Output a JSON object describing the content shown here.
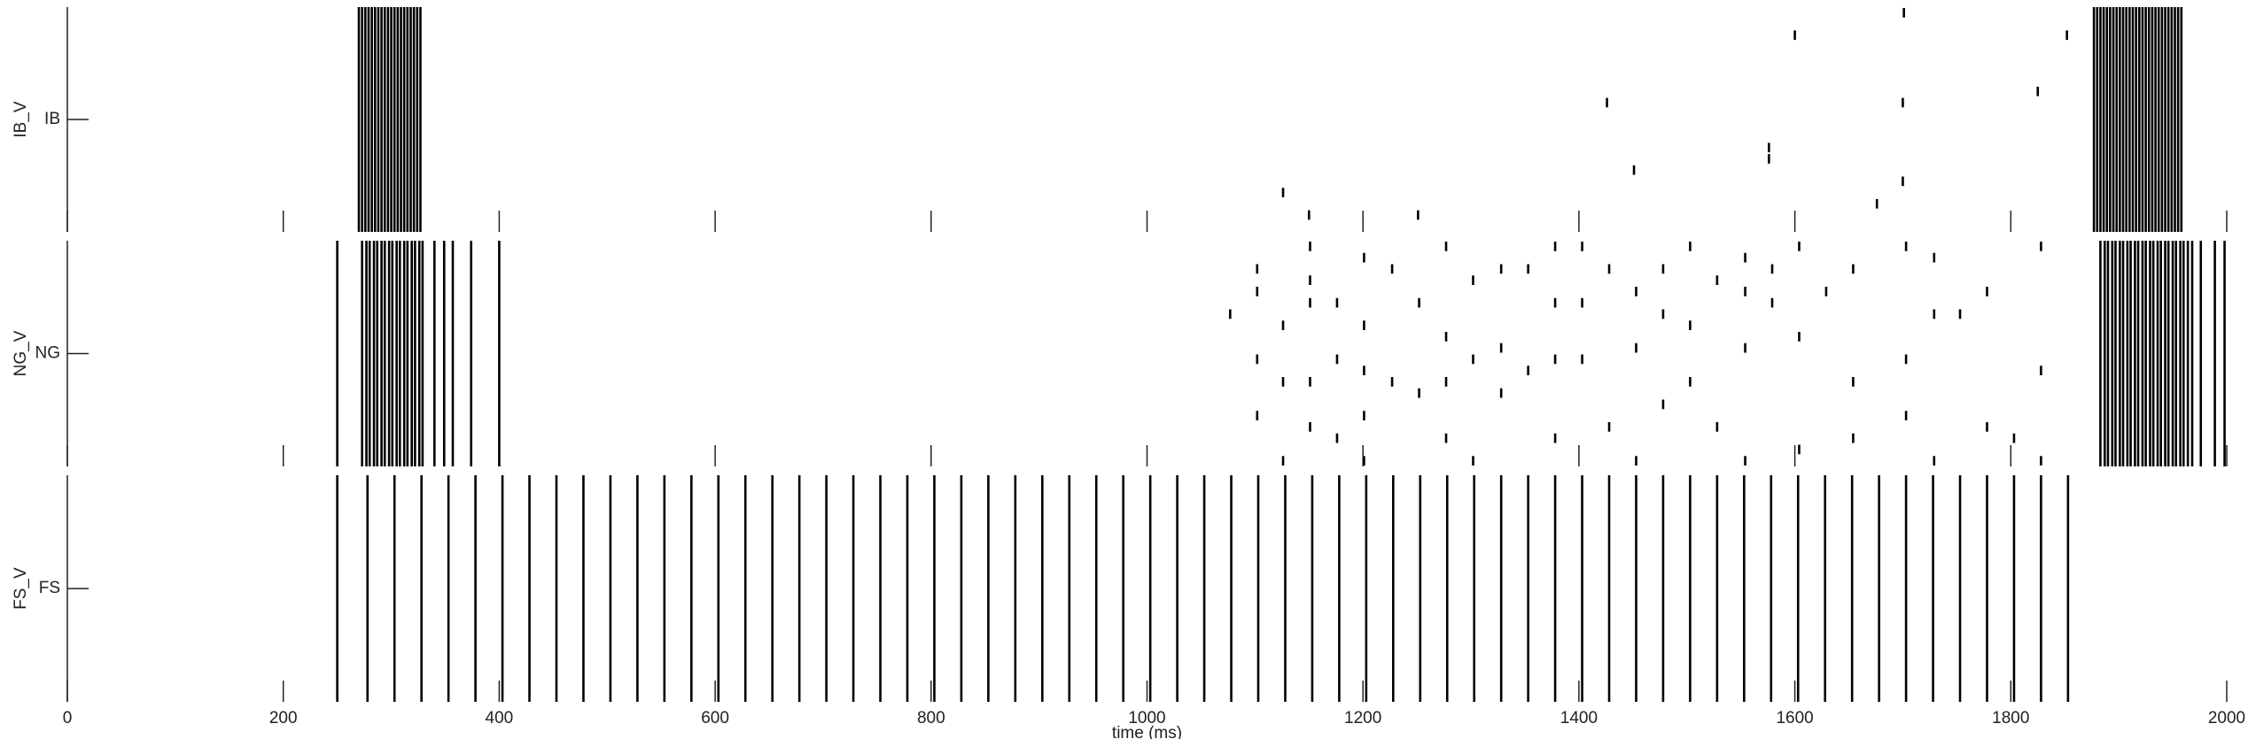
{
  "chart_data": [
    {
      "type": "raster",
      "ylabel": "IB_V",
      "ylim": [
        0,
        20
      ],
      "yticks": [
        {
          "value": 10,
          "label": "IB"
        }
      ],
      "xlim": [
        0,
        2000
      ],
      "xticks": [
        0,
        200,
        400,
        600,
        800,
        1000,
        1200,
        1400,
        1600,
        1800,
        2000
      ],
      "color": "#000000",
      "volleys": [
        270,
        273,
        276,
        279,
        282,
        285,
        288,
        291,
        294,
        297,
        300,
        303,
        306,
        309,
        312,
        315,
        318,
        321,
        324,
        327,
        1877,
        1880,
        1883,
        1886,
        1889,
        1892,
        1895,
        1898,
        1901,
        1904,
        1907,
        1910,
        1913,
        1916,
        1919,
        1922,
        1925,
        1928,
        1931,
        1934,
        1937,
        1940,
        1943,
        1946,
        1949,
        1952,
        1955,
        1958
      ],
      "spikes": {
        "x": [
          1126,
          1150,
          1251,
          1426,
          1451,
          1576,
          1576,
          1600,
          1676,
          1700,
          1700,
          1701,
          1825,
          1852
        ],
        "y": [
          3,
          1,
          1,
          11,
          5,
          7,
          6,
          17,
          2,
          4,
          11,
          19,
          12,
          17
        ]
      }
    },
    {
      "type": "raster",
      "ylabel": "NG_V",
      "ylim": [
        0,
        20
      ],
      "yticks": [
        {
          "value": 10,
          "label": "NG"
        }
      ],
      "xlim": [
        0,
        2000
      ],
      "xticks": [
        0,
        200,
        400,
        600,
        800,
        1000,
        1200,
        1400,
        1600,
        1800,
        2000
      ],
      "color": "#000000",
      "volleys": [
        250,
        273,
        277,
        280,
        284,
        287,
        291,
        294,
        298,
        301,
        305,
        308,
        312,
        315,
        319,
        322,
        326,
        329,
        340,
        349,
        357,
        374,
        400,
        1883,
        1887,
        1890,
        1894,
        1897,
        1901,
        1904,
        1908,
        1911,
        1915,
        1918,
        1922,
        1925,
        1929,
        1932,
        1936,
        1939,
        1943,
        1946,
        1950,
        1953,
        1957,
        1960,
        1964,
        1968,
        1976,
        1989,
        1998
      ],
      "spikes": {
        "x": [
          1077,
          1102,
          1102,
          1102,
          1102,
          1126,
          1126,
          1126,
          1151,
          1151,
          1151,
          1151,
          1151,
          1176,
          1176,
          1176,
          1201,
          1201,
          1201,
          1201,
          1201,
          1227,
          1227,
          1252,
          1252,
          1277,
          1277,
          1277,
          1277,
          1302,
          1302,
          1302,
          1328,
          1328,
          1328,
          1353,
          1353,
          1378,
          1378,
          1378,
          1378,
          1403,
          1403,
          1403,
          1428,
          1428,
          1453,
          1453,
          1453,
          1478,
          1478,
          1478,
          1503,
          1503,
          1503,
          1528,
          1528,
          1554,
          1554,
          1554,
          1554,
          1579,
          1579,
          1604,
          1604,
          1604,
          1629,
          1654,
          1654,
          1654,
          1703,
          1703,
          1703,
          1729,
          1729,
          1729,
          1753,
          1778,
          1778,
          1803,
          1828,
          1828,
          1828
        ],
        "y": [
          13,
          17,
          15,
          9,
          4,
          12,
          7,
          0,
          19,
          16,
          14,
          7,
          3,
          14,
          9,
          2,
          18,
          12,
          8,
          4,
          0,
          17,
          7,
          14,
          6,
          19,
          11,
          7,
          2,
          16,
          9,
          0,
          17,
          10,
          6,
          17,
          8,
          19,
          14,
          9,
          2,
          19,
          14,
          9,
          17,
          3,
          15,
          10,
          0,
          17,
          13,
          5,
          19,
          12,
          7,
          16,
          3,
          18,
          15,
          10,
          0,
          17,
          14,
          19,
          11,
          1,
          15,
          17,
          7,
          2,
          19,
          9,
          4,
          18,
          13,
          0,
          13,
          15,
          3,
          2,
          19,
          8,
          0
        ]
      }
    },
    {
      "type": "raster",
      "ylabel": "FS_V",
      "ylim": [
        0,
        20
      ],
      "yticks": [
        {
          "value": 10,
          "label": "FS"
        }
      ],
      "xlim": [
        0,
        2000
      ],
      "xticks": [
        0,
        200,
        400,
        600,
        800,
        1000,
        1200,
        1400,
        1600,
        1800,
        2000
      ],
      "color": "#000000",
      "xlabel": "time (ms)",
      "volleys": [
        250,
        278,
        303,
        328,
        353,
        378,
        403,
        428,
        453,
        478,
        503,
        528,
        553,
        578,
        603,
        628,
        653,
        678,
        703,
        728,
        753,
        778,
        803,
        828,
        853,
        878,
        903,
        928,
        953,
        978,
        1003,
        1028,
        1053,
        1078,
        1103,
        1128,
        1153,
        1178,
        1203,
        1228,
        1253,
        1278,
        1303,
        1328,
        1353,
        1378,
        1403,
        1428,
        1453,
        1478,
        1503,
        1528,
        1553,
        1578,
        1603,
        1628,
        1653,
        1678,
        1703,
        1728,
        1753,
        1778,
        1803,
        1828,
        1853
      ],
      "spikes": {
        "x": [],
        "y": []
      }
    }
  ]
}
